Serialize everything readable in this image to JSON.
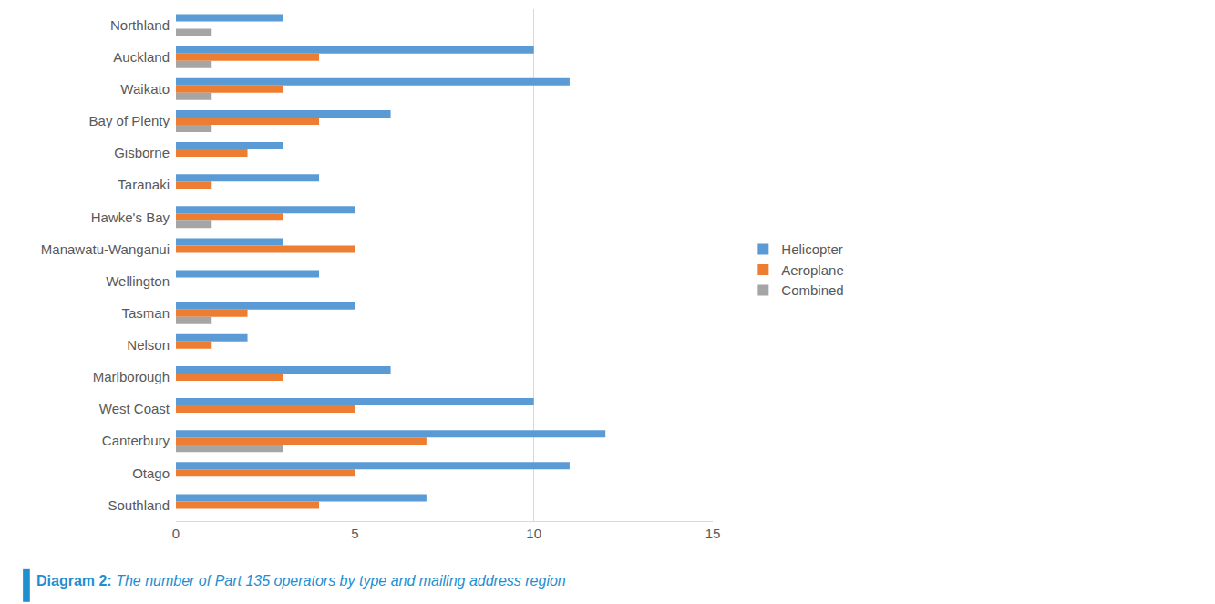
{
  "chart_data": {
    "type": "bar",
    "title": "Diagram 2: The number of Part 135 operators by type and mailing address region",
    "orientation": "horizontal",
    "categories": [
      "Northland",
      "Auckland",
      "Waikato",
      "Bay of Plenty",
      "Gisborne",
      "Taranaki",
      "Hawke's Bay",
      "Manawatu-Wanganui",
      "Wellington",
      "Tasman",
      "Nelson",
      "Marlborough",
      "West Coast",
      "Canterbury",
      "Otago",
      "Southland"
    ],
    "series": [
      {
        "name": "Helicopter",
        "color": "#5b9bd5",
        "values": [
          3,
          10,
          11,
          6,
          3,
          4,
          5,
          3,
          4,
          5,
          2,
          6,
          10,
          12,
          11,
          7
        ]
      },
      {
        "name": "Aeroplane",
        "color": "#ed7d31",
        "values": [
          0,
          4,
          3,
          4,
          2,
          1,
          3,
          5,
          0,
          2,
          1,
          3,
          5,
          7,
          5,
          4
        ]
      },
      {
        "name": "Combined",
        "color": "#a5a5a5",
        "values": [
          1,
          1,
          1,
          1,
          0,
          0,
          1,
          0,
          0,
          1,
          0,
          0,
          0,
          3,
          0,
          0
        ]
      }
    ],
    "xlim": [
      0,
      15
    ],
    "xticks": [
      0,
      5,
      10,
      15
    ],
    "grid": true,
    "legend": "right"
  }
}
